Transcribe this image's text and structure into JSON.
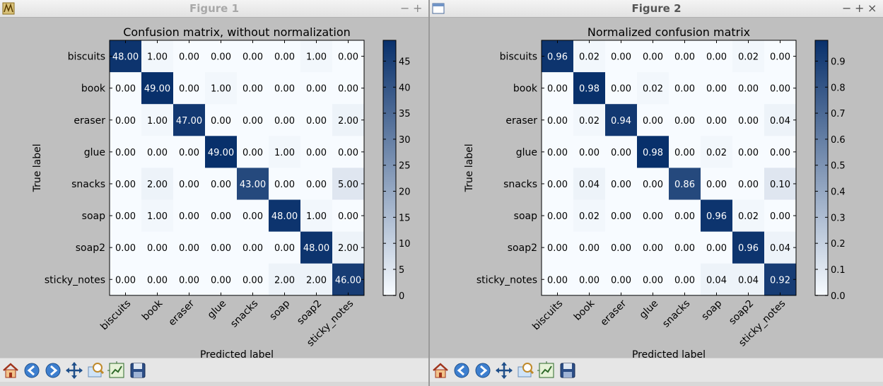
{
  "windows": [
    {
      "title": "Figure 1",
      "chart_data": {
        "type": "heatmap",
        "title": "Confusion matrix, without normalization",
        "xlabel": "Predicted label",
        "ylabel": "True label",
        "x_categories": [
          "biscuits",
          "book",
          "eraser",
          "glue",
          "snacks",
          "soap",
          "soap2",
          "sticky_notes"
        ],
        "y_categories": [
          "biscuits",
          "book",
          "eraser",
          "glue",
          "snacks",
          "soap",
          "soap2",
          "sticky_notes"
        ],
        "values": [
          [
            48,
            1,
            0,
            0,
            0,
            0,
            1,
            0
          ],
          [
            0,
            49,
            0,
            1,
            0,
            0,
            0,
            0
          ],
          [
            0,
            1,
            47,
            0,
            0,
            0,
            0,
            2
          ],
          [
            0,
            0,
            0,
            49,
            0,
            1,
            0,
            0
          ],
          [
            0,
            2,
            0,
            0,
            43,
            0,
            0,
            5
          ],
          [
            0,
            1,
            0,
            0,
            0,
            48,
            1,
            0
          ],
          [
            0,
            0,
            0,
            0,
            0,
            0,
            48,
            2
          ],
          [
            0,
            0,
            0,
            0,
            0,
            2,
            2,
            46
          ]
        ],
        "value_format": "2",
        "colormap": "Blues",
        "vmin": 0,
        "vmax": 49,
        "colorbar_ticks": [
          0,
          5,
          10,
          15,
          20,
          25,
          30,
          35,
          40,
          45
        ],
        "colorbar_tick_format": "0"
      }
    },
    {
      "title": "Figure 2",
      "chart_data": {
        "type": "heatmap",
        "title": "Normalized confusion matrix",
        "xlabel": "Predicted label",
        "ylabel": "True label",
        "x_categories": [
          "biscuits",
          "book",
          "eraser",
          "glue",
          "snacks",
          "soap",
          "soap2",
          "sticky_notes"
        ],
        "y_categories": [
          "biscuits",
          "book",
          "eraser",
          "glue",
          "snacks",
          "soap",
          "soap2",
          "sticky_notes"
        ],
        "values": [
          [
            0.96,
            0.02,
            0,
            0,
            0,
            0,
            0.02,
            0
          ],
          [
            0,
            0.98,
            0,
            0.02,
            0,
            0,
            0,
            0
          ],
          [
            0,
            0.02,
            0.94,
            0,
            0,
            0,
            0,
            0.04
          ],
          [
            0,
            0,
            0,
            0.98,
            0,
            0.02,
            0,
            0
          ],
          [
            0,
            0.04,
            0,
            0,
            0.86,
            0,
            0,
            0.1
          ],
          [
            0,
            0.02,
            0,
            0,
            0,
            0.96,
            0.02,
            0
          ],
          [
            0,
            0,
            0,
            0,
            0,
            0,
            0.96,
            0.04
          ],
          [
            0,
            0,
            0,
            0,
            0,
            0.04,
            0.04,
            0.92
          ]
        ],
        "value_format": "2",
        "colormap": "Blues",
        "vmin": 0,
        "vmax": 0.98,
        "colorbar_ticks": [
          0.0,
          0.1,
          0.2,
          0.3,
          0.4,
          0.5,
          0.6,
          0.7,
          0.8,
          0.9
        ],
        "colorbar_tick_format": "1"
      }
    }
  ],
  "toolbar": {
    "icons": [
      "home-icon",
      "back-arrow-icon",
      "forward-arrow-icon",
      "pan-icon",
      "zoom-icon",
      "configure-subplots-icon",
      "save-icon"
    ]
  },
  "colors": {
    "cmap_low": "#f7fbff",
    "cmap_high": "#08306b",
    "window_bg": "#bfbfbf"
  }
}
